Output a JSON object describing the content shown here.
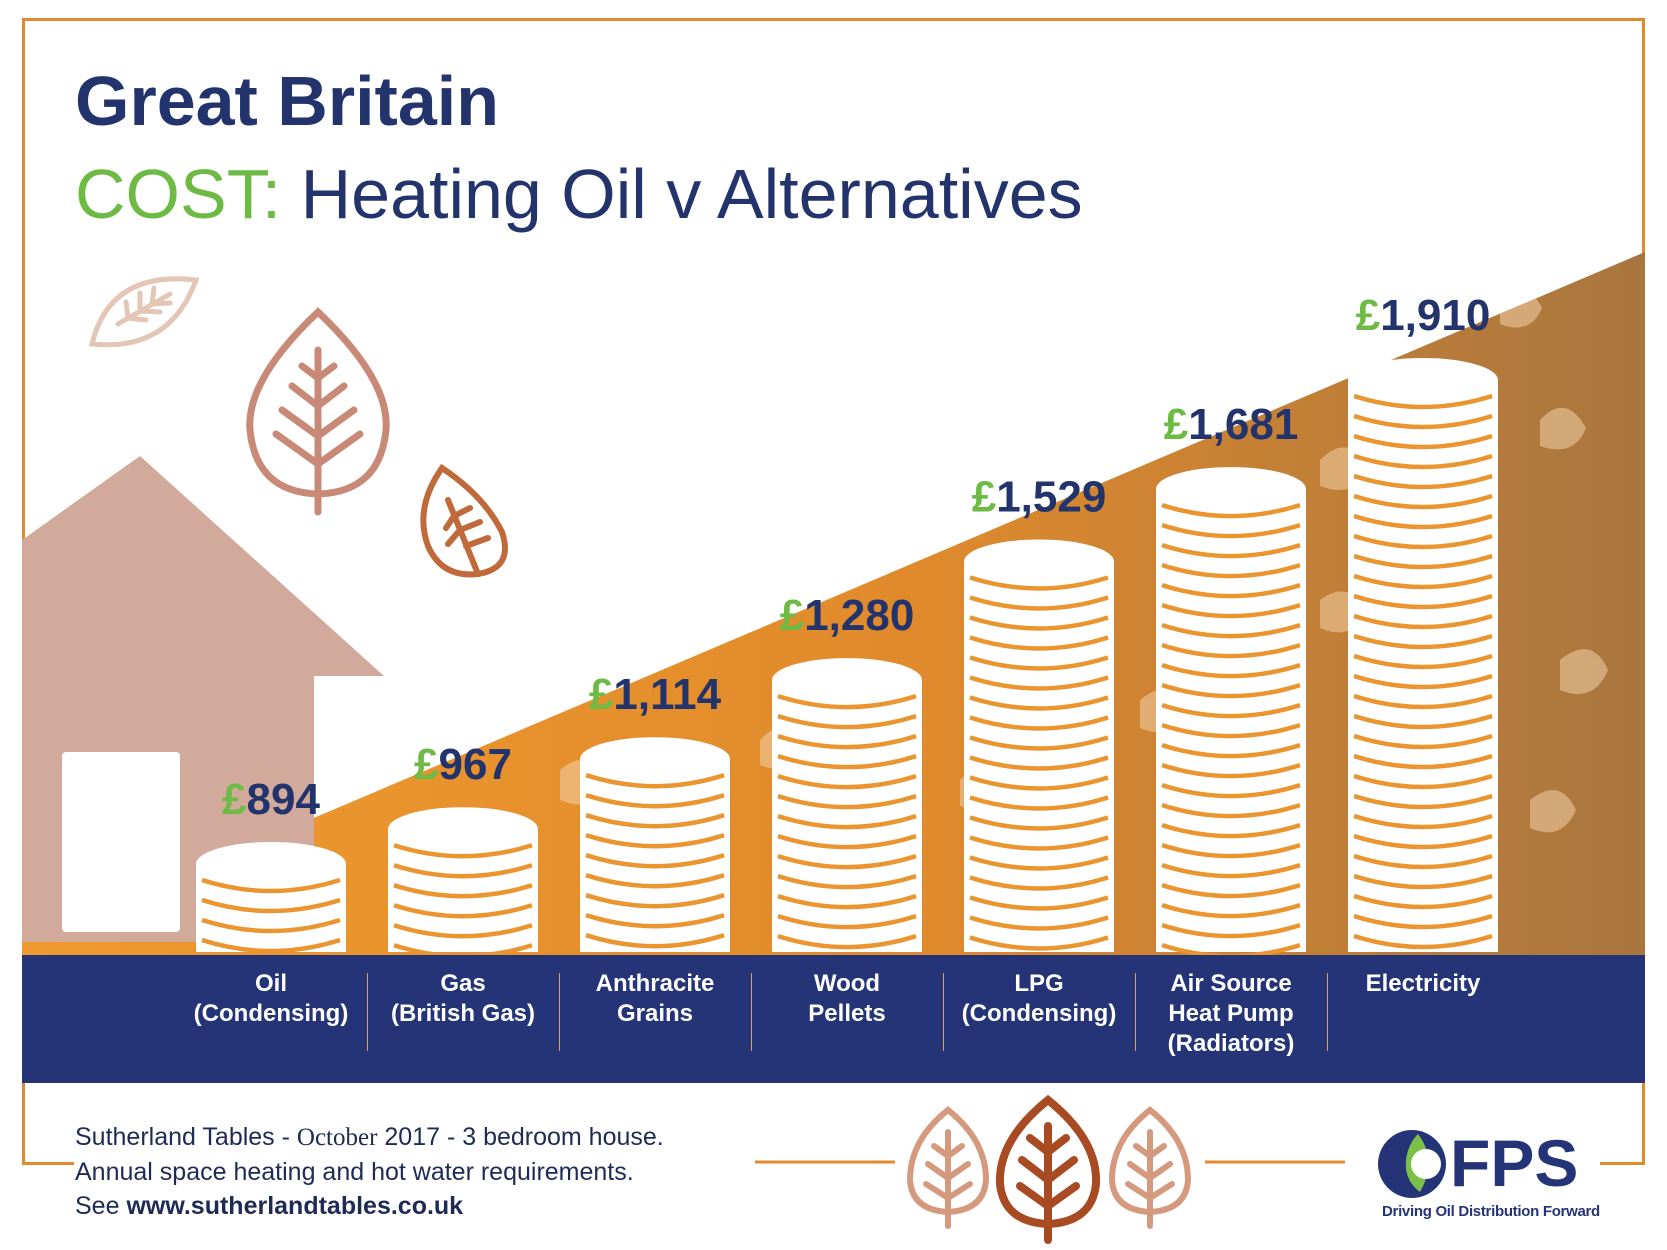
{
  "header": {
    "title": "Great Britain",
    "subtitle_accent": "COST:",
    "subtitle_rest": " Heating Oil v Alternatives"
  },
  "colors": {
    "navy": "#23336b",
    "green": "#6dbb45",
    "orange": "#e58a2c",
    "brown": "#b07840",
    "house": "#d2aa9b"
  },
  "chart_data": {
    "type": "bar",
    "categories": [
      [
        "Oil",
        "(Condensing)"
      ],
      [
        "Gas",
        "(British Gas)"
      ],
      [
        "Anthracite",
        "Grains"
      ],
      [
        "Wood",
        "Pellets"
      ],
      [
        "LPG",
        "(Condensing)"
      ],
      [
        "Air Source",
        "Heat Pump",
        "(Radiators)"
      ],
      [
        "Electricity"
      ]
    ],
    "values": [
      894,
      967,
      1114,
      1280,
      1529,
      1681,
      1910
    ],
    "value_labels": [
      "894",
      "967",
      "1,114",
      "1,280",
      "1,529",
      "1,681",
      "1,910"
    ],
    "currency_symbol": "£",
    "title": "COST: Heating Oil v Alternatives",
    "xlabel": "",
    "ylabel": "",
    "grid": false,
    "legend": "none"
  },
  "footer": {
    "line1_a": "Sutherland Tables - ",
    "line1_month": "October",
    "line1_b": " 2017 - 3 bedroom house.",
    "line2": "Annual space heating and hot water requirements.",
    "line3_a": "See ",
    "url": "www.sutherlandtables.co.uk",
    "logo_text": "FPS",
    "tagline": "Driving Oil Distribution Forward"
  }
}
